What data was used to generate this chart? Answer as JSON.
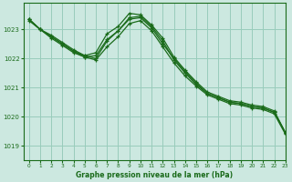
{
  "title": "Graphe pression niveau de la mer (hPa)",
  "background_color": "#cce8e0",
  "plot_bg_color": "#cce8e0",
  "grid_color": "#99ccbb",
  "line_color": "#1a6b1a",
  "xlim": [
    -0.5,
    23
  ],
  "ylim": [
    1018.5,
    1023.9
  ],
  "yticks": [
    1019,
    1020,
    1021,
    1022,
    1023
  ],
  "xticks": [
    0,
    1,
    2,
    3,
    4,
    5,
    6,
    7,
    8,
    9,
    10,
    11,
    12,
    13,
    14,
    15,
    16,
    17,
    18,
    19,
    20,
    21,
    22,
    23
  ],
  "lines": [
    [
      1023.35,
      1023.0,
      1022.8,
      1022.55,
      1022.3,
      1022.1,
      1022.2,
      1022.85,
      1023.1,
      1023.55,
      1023.5,
      1023.15,
      1022.7,
      1022.05,
      1021.6,
      1021.2,
      1020.85,
      1020.7,
      1020.55,
      1020.5,
      1020.4,
      1020.35,
      1020.2,
      1019.45
    ],
    [
      1023.35,
      1023.0,
      1022.75,
      1022.5,
      1022.25,
      1022.1,
      1022.0,
      1022.6,
      1022.95,
      1023.35,
      1023.4,
      1023.05,
      1022.5,
      1022.0,
      1021.55,
      1021.15,
      1020.8,
      1020.65,
      1020.5,
      1020.45,
      1020.35,
      1020.3,
      1020.15,
      1019.45
    ],
    [
      1023.3,
      1023.0,
      1022.7,
      1022.45,
      1022.2,
      1022.05,
      1021.95,
      1022.4,
      1022.75,
      1023.2,
      1023.3,
      1022.95,
      1022.4,
      1021.85,
      1021.4,
      1021.05,
      1020.75,
      1020.6,
      1020.45,
      1020.4,
      1020.3,
      1020.25,
      1020.1,
      1019.4
    ],
    [
      1023.35,
      1023.0,
      1022.75,
      1022.5,
      1022.25,
      1022.05,
      1022.1,
      1022.65,
      1022.95,
      1023.4,
      1023.45,
      1023.1,
      1022.6,
      1021.95,
      1021.5,
      1021.1,
      1020.8,
      1020.65,
      1020.5,
      1020.45,
      1020.35,
      1020.3,
      1020.15,
      1019.45
    ]
  ]
}
